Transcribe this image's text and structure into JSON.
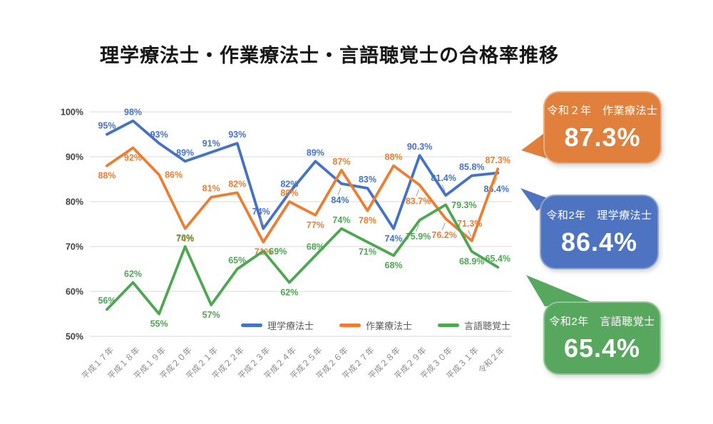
{
  "title": "理学療法士・作業療法士・言語聴覚士の合格率推移",
  "chart_data": {
    "type": "line",
    "title": "理学療法士・作業療法士・言語聴覚士の合格率推移",
    "categories": [
      "平成１７年",
      "平成１８年",
      "平成１９年",
      "平成２０年",
      "平成２１年",
      "平成２２年",
      "平成２３年",
      "平成２４年",
      "平成２５年",
      "平成２６年",
      "平成２７年",
      "平成２８年",
      "平成２９年",
      "平成３０年",
      "平成３１年",
      "令和２年"
    ],
    "series": [
      {
        "name": "理学療法士",
        "color": "#4472C4",
        "values": [
          95,
          98,
          93,
          89,
          91,
          93,
          74,
          82,
          89,
          84,
          83,
          74,
          90.3,
          81.4,
          85.8,
          86.4
        ],
        "label_pos": [
          "a",
          "a",
          "a",
          "a",
          "a",
          "a",
          "al",
          "a",
          "a",
          "bl",
          "a",
          "b",
          "a",
          "al",
          "a",
          "bl"
        ]
      },
      {
        "name": "作業療法士",
        "color": "#ED7D31",
        "values": [
          88,
          92,
          86,
          74,
          81,
          82,
          71,
          80,
          77,
          87,
          78,
          88,
          83.7,
          76.2,
          71.3,
          87.3
        ],
        "label_pos": [
          "b",
          "b",
          "r",
          "b",
          "a",
          "a",
          "b",
          "a",
          "b",
          "a",
          "b",
          "a",
          "bl",
          "bl",
          "al",
          "a"
        ]
      },
      {
        "name": "言語聴覚士",
        "color": "#4CA751",
        "values": [
          56,
          62,
          55,
          70,
          57,
          65,
          69,
          62,
          68,
          74,
          71,
          68,
          75.9,
          79.3,
          68.9,
          65.4
        ],
        "label_pos": [
          "a",
          "a",
          "b",
          "a",
          "b",
          "a",
          "r",
          "b",
          "a",
          "a",
          "b",
          "b",
          "bl",
          "r",
          "b",
          "a"
        ]
      }
    ],
    "ylim": [
      50,
      100
    ],
    "yticks": [
      100,
      90,
      80,
      70,
      60,
      50
    ],
    "ytick_suffix": "%",
    "grid": true,
    "legend_position": "bottom-inside",
    "gridline_color": "#D9D9D9"
  },
  "callouts": [
    {
      "line1": "令和２年　作業療法士",
      "value": "87.3%",
      "color": "#E0803C"
    },
    {
      "line1": "令和2年　理学療法士",
      "value": "86.4%",
      "color": "#4E73C0"
    },
    {
      "line1": "令和2年　言語聴覚士",
      "value": "65.4%",
      "color": "#57A85E"
    }
  ]
}
